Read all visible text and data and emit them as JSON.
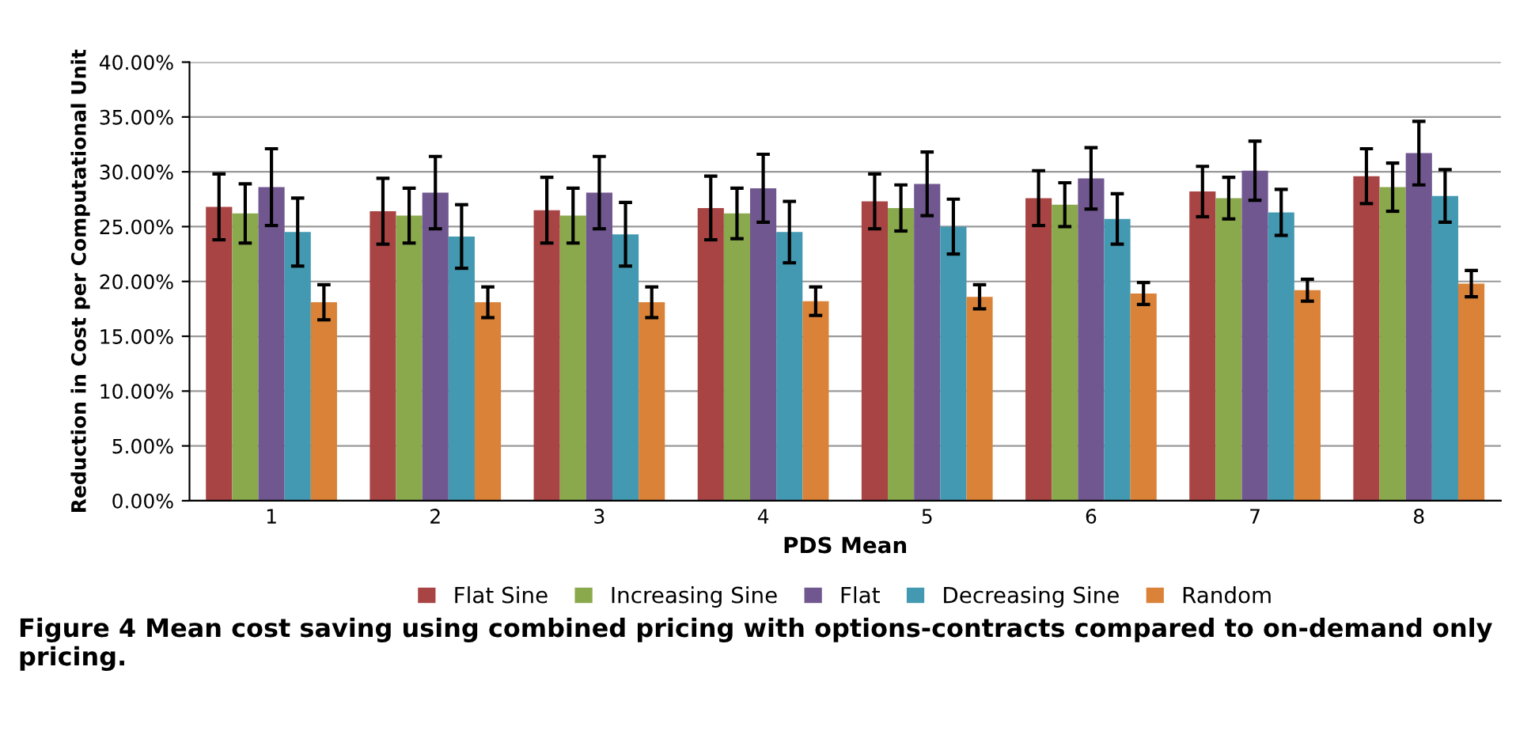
{
  "chart_data": {
    "type": "bar",
    "xlabel": "PDS Mean",
    "ylabel": "Reduction in Cost per Computational Unit",
    "categories": [
      "1",
      "2",
      "3",
      "4",
      "5",
      "6",
      "7",
      "8"
    ],
    "series": [
      {
        "name": "Flat Sine",
        "color": "#a94444",
        "values": [
          26.8,
          26.4,
          26.5,
          26.7,
          27.3,
          27.6,
          28.2,
          29.6
        ],
        "errors": [
          3.0,
          3.0,
          3.0,
          2.9,
          2.5,
          2.5,
          2.3,
          2.5
        ]
      },
      {
        "name": "Increasing Sine",
        "color": "#8aa84c",
        "values": [
          26.2,
          26.0,
          26.0,
          26.2,
          26.7,
          27.0,
          27.6,
          28.6
        ],
        "errors": [
          2.7,
          2.5,
          2.5,
          2.3,
          2.1,
          2.0,
          1.9,
          2.2
        ]
      },
      {
        "name": "Flat",
        "color": "#71578f",
        "values": [
          28.6,
          28.1,
          28.1,
          28.5,
          28.9,
          29.4,
          30.1,
          31.7
        ],
        "errors": [
          3.5,
          3.3,
          3.3,
          3.1,
          2.9,
          2.8,
          2.7,
          2.9
        ]
      },
      {
        "name": "Decreasing Sine",
        "color": "#4299b1",
        "values": [
          24.5,
          24.1,
          24.3,
          24.5,
          25.0,
          25.7,
          26.3,
          27.8
        ],
        "errors": [
          3.1,
          2.9,
          2.9,
          2.8,
          2.5,
          2.3,
          2.1,
          2.4
        ]
      },
      {
        "name": "Random",
        "color": "#da8237",
        "values": [
          18.1,
          18.1,
          18.1,
          18.2,
          18.6,
          18.9,
          19.2,
          19.8
        ],
        "errors": [
          1.6,
          1.4,
          1.4,
          1.3,
          1.1,
          1.0,
          1.0,
          1.2
        ]
      }
    ],
    "ylim": [
      0,
      40
    ],
    "yticks": [
      {
        "value": 0,
        "label": "0.00%"
      },
      {
        "value": 5,
        "label": "5.00%"
      },
      {
        "value": 10,
        "label": "10.00%"
      },
      {
        "value": 15,
        "label": "15.00%"
      },
      {
        "value": 20,
        "label": "20.00%"
      },
      {
        "value": 25,
        "label": "25.00%"
      },
      {
        "value": 30,
        "label": "30.00%"
      },
      {
        "value": 35,
        "label": "35.00%"
      },
      {
        "value": 40,
        "label": "40.00%"
      }
    ],
    "grid": "y",
    "legend": "bottom",
    "annotations": [
      "Figure 4 Mean cost saving using combined pricing with options-contracts compared to on-demand only pricing."
    ]
  }
}
